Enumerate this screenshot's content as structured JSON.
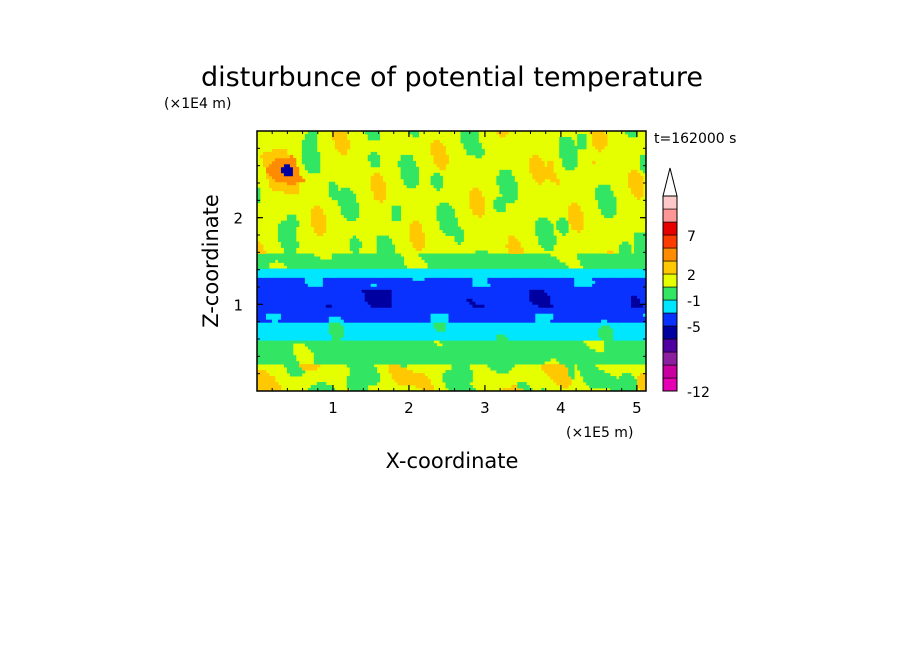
{
  "chart_data": {
    "type": "heatmap",
    "title": "disturbunce of potential temperature",
    "time_label": "t=162000 s",
    "xlabel": "X-coordinate",
    "ylabel": "Z-coordinate",
    "x_scale_label": "(×1E5 m)",
    "y_scale_label": "(×1E4 m)",
    "xlim": [
      0,
      5.12
    ],
    "ylim": [
      0,
      3.0
    ],
    "x_ticks": [
      {
        "value": 1,
        "label": "1"
      },
      {
        "value": 2,
        "label": "2"
      },
      {
        "value": 3,
        "label": "3"
      },
      {
        "value": 4,
        "label": "4"
      },
      {
        "value": 5,
        "label": "5"
      }
    ],
    "y_ticks": [
      {
        "value": 1,
        "label": "1"
      },
      {
        "value": 2,
        "label": "2"
      }
    ],
    "colorbar": {
      "colors": [
        "#e600b4",
        "#c800a0",
        "#8c1ea0",
        "#5000a0",
        "#0000a0",
        "#0a32ff",
        "#00e6ff",
        "#32e664",
        "#e6ff00",
        "#ffc800",
        "#ff8c00",
        "#ff3c00",
        "#e60000",
        "#ff9696",
        "#ffc8c8"
      ],
      "extend": "max",
      "tick_labels": [
        {
          "level_index": 0,
          "label": "-12"
        },
        {
          "level_index": 5,
          "label": "-5"
        },
        {
          "level_index": 7,
          "label": "-1"
        },
        {
          "level_index": 9,
          "label": "2"
        },
        {
          "level_index": 12,
          "label": "7"
        }
      ]
    },
    "bands": [
      {
        "z_min": 0.0,
        "z_max": 0.3,
        "base_class": "yellow",
        "note": "yellow/green patchy near surface"
      },
      {
        "z_min": 0.3,
        "z_max": 0.6,
        "base_class": "green"
      },
      {
        "z_min": 0.6,
        "z_max": 0.8,
        "base_class": "cyan"
      },
      {
        "z_min": 0.8,
        "z_max": 1.3,
        "base_class": "blue"
      },
      {
        "z_min": 1.3,
        "z_max": 1.42,
        "base_class": "cyan"
      },
      {
        "z_min": 1.42,
        "z_max": 1.6,
        "base_class": "green"
      },
      {
        "z_min": 1.6,
        "z_max": 3.0,
        "base_class": "yellow"
      }
    ]
  }
}
